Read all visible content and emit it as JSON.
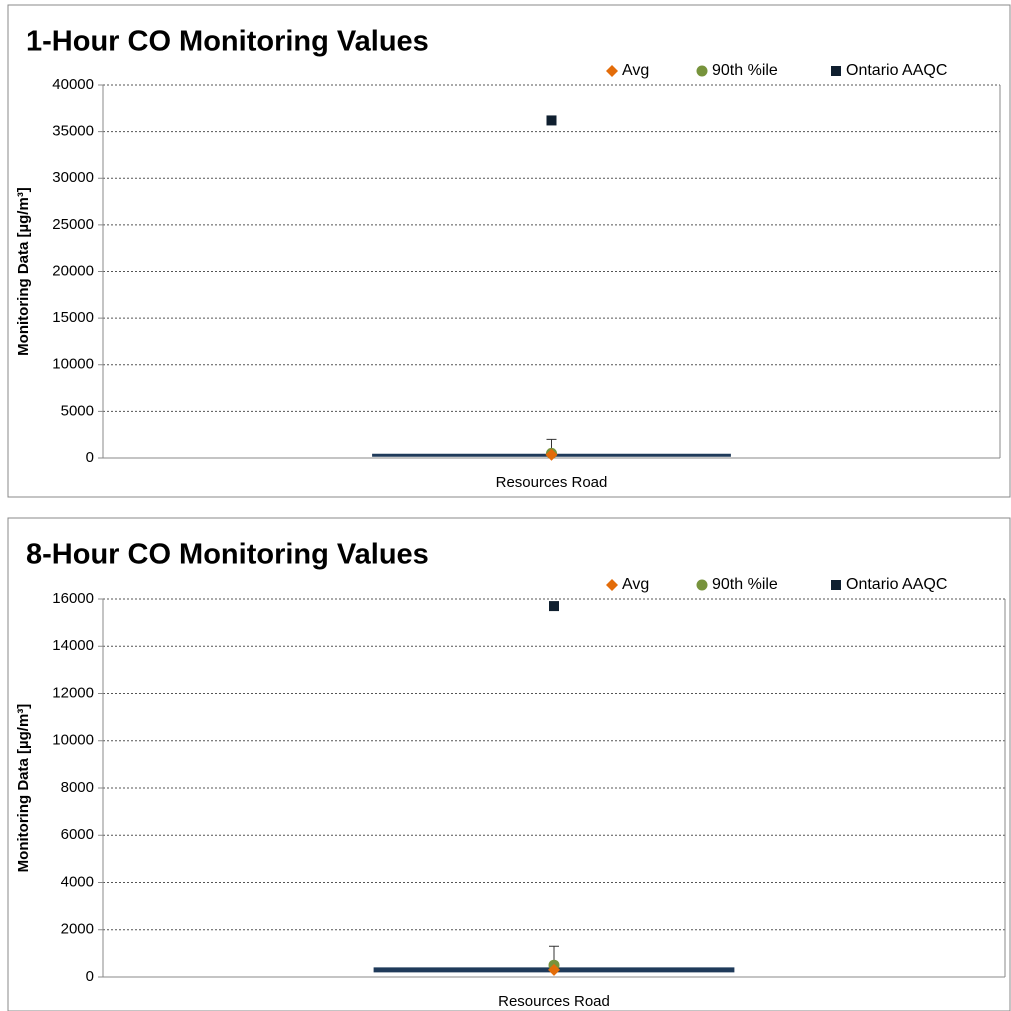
{
  "chart_data": [
    {
      "type": "scatter",
      "title": "1-Hour CO Monitoring Values",
      "y_label": "Monitoring Data  [µg/m³]",
      "categories": [
        "Resources Road"
      ],
      "series": [
        {
          "name": "Avg",
          "color": "#e36c09",
          "marker": "diamond",
          "values": [
            350
          ]
        },
        {
          "name": "90th %ile",
          "color": "#77933c",
          "marker": "circle",
          "values": [
            500
          ],
          "errors": [
            1500
          ]
        },
        {
          "name": "Ontario AAQC",
          "color": "#0f1f2f",
          "marker": "square",
          "values": [
            36200
          ]
        }
      ],
      "reference_line": {
        "value": 300,
        "color": "#1f3a5a"
      },
      "ylim": [
        0,
        40000
      ],
      "yticks": [
        0,
        5000,
        10000,
        15000,
        20000,
        25000,
        30000,
        35000,
        40000
      ],
      "grid": true
    },
    {
      "type": "scatter",
      "title": "8-Hour CO Monitoring Values",
      "y_label": "Monitoring Data  [µg/m³]",
      "categories": [
        "Resources Road"
      ],
      "series": [
        {
          "name": "Avg",
          "color": "#e36c09",
          "marker": "diamond",
          "values": [
            300
          ]
        },
        {
          "name": "90th %ile",
          "color": "#77933c",
          "marker": "circle",
          "values": [
            500
          ],
          "errors": [
            800
          ]
        },
        {
          "name": "Ontario AAQC",
          "color": "#0f1f2f",
          "marker": "square",
          "values": [
            15700
          ]
        }
      ],
      "reference_line": {
        "value": 300,
        "color": "#1f3a5a"
      },
      "ylim": [
        0,
        16000
      ],
      "yticks": [
        0,
        2000,
        4000,
        6000,
        8000,
        10000,
        12000,
        14000,
        16000
      ],
      "grid": true
    }
  ]
}
